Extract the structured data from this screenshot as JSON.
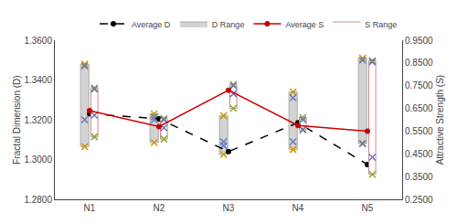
{
  "chart_data": {
    "type": "line",
    "categories": [
      "N1",
      "N2",
      "N3",
      "N4",
      "N5"
    ],
    "ylabel": "Fractal Dimension (D)",
    "y2label": "Attractive Strength (S)",
    "ylim": [
      1.28,
      1.36
    ],
    "yticks": [
      {
        "value": 1.28,
        "label": "1.2800"
      },
      {
        "value": 1.3,
        "label": "1.3000"
      },
      {
        "value": 1.32,
        "label": "1.3200"
      },
      {
        "value": 1.34,
        "label": "1.3400"
      },
      {
        "value": 1.36,
        "label": "1.3600"
      }
    ],
    "y2lim": [
      0.25,
      0.95
    ],
    "y2ticks": [
      {
        "value": 0.25,
        "label": "0.2500"
      },
      {
        "value": 0.35,
        "label": "0.3500"
      },
      {
        "value": 0.45,
        "label": "0.4500"
      },
      {
        "value": 0.55,
        "label": "0.5500"
      },
      {
        "value": 0.65,
        "label": "0.6500"
      },
      {
        "value": 0.75,
        "label": "0.7500"
      },
      {
        "value": 0.85,
        "label": "0.8500"
      },
      {
        "value": 0.95,
        "label": "0.9500"
      }
    ],
    "grid": false,
    "legend": "upper right",
    "series": [
      {
        "name": "Average D",
        "type": "line",
        "color": "#000000",
        "line_style": "dashed",
        "marker": "circle",
        "values": [
          1.323,
          1.3205,
          1.304,
          1.3185,
          1.2975
        ]
      },
      {
        "name": "D Range",
        "type": "range",
        "color": "#d3d3d3",
        "low": [
          1.3065,
          1.3085,
          1.3025,
          1.305,
          1.308
        ],
        "high": [
          1.348,
          1.323,
          1.322,
          1.334,
          1.351
        ]
      },
      {
        "type": "scatter",
        "marker": "x",
        "color": "#cc9900",
        "low": [
          1.3065,
          1.3085,
          1.3025,
          1.305,
          1.308
        ],
        "high": [
          1.348,
          1.323,
          1.322,
          1.334,
          1.351
        ]
      },
      {
        "type": "scatter",
        "marker": "x",
        "color": "#6677bb",
        "low": [
          1.32,
          1.32,
          1.309,
          1.309,
          1.35
        ],
        "high": [
          1.347,
          1.3215,
          1.307,
          1.331,
          1.308
        ]
      },
      {
        "name": "Average S",
        "type": "line",
        "axis": "y2",
        "color": "#cc0000",
        "line_style": "solid",
        "marker": "circle",
        "values": [
          0.64,
          0.57,
          0.73,
          0.575,
          0.55
        ]
      },
      {
        "name": "S Range",
        "type": "range",
        "axis": "y2",
        "color": "#ffffff",
        "low": [
          0.525,
          0.515,
          0.65,
          0.555,
          0.36
        ],
        "high": [
          0.74,
          0.605,
          0.755,
          0.61,
          0.86
        ]
      },
      {
        "type": "scatter",
        "axis": "y2",
        "marker": "x",
        "color": "#88aa33",
        "low": [
          0.525,
          0.515,
          0.65,
          0.555,
          0.36
        ],
        "high": [
          0.74,
          0.605,
          0.755,
          0.61,
          0.86
        ]
      },
      {
        "type": "scatter",
        "axis": "y2",
        "marker": "x",
        "color": "#6677bb",
        "low": [
          0.62,
          0.565,
          0.715,
          0.558,
          0.435
        ],
        "high": [
          0.735,
          0.6,
          0.75,
          0.6,
          0.855
        ]
      }
    ]
  }
}
